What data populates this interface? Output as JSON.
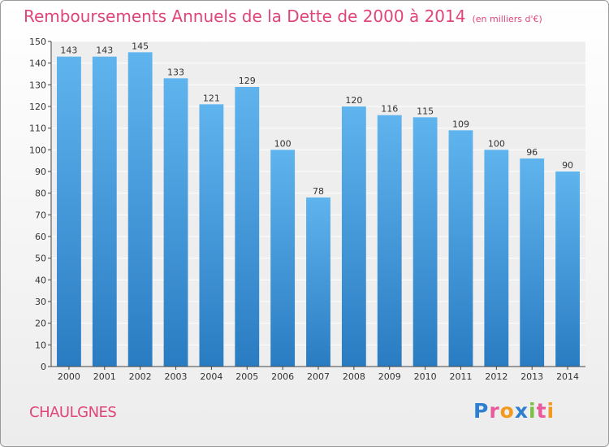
{
  "header": {
    "title": "Remboursements Annuels de la Dette de 2000 à 2014",
    "unit": "(en milliers d'€)"
  },
  "footer": {
    "town": "CHAULGNES",
    "logo_text": "Proxiti"
  },
  "colors": {
    "title": "#e0457a",
    "bar_top": "#5fb4ee",
    "bar_bottom": "#2a7cc2",
    "plot_bg": "#eeeeee",
    "grid": "#ffffff",
    "axis": "#444444"
  },
  "chart_data": {
    "type": "bar",
    "title": "Remboursements Annuels de la Dette de 2000 à 2014",
    "xlabel": "",
    "ylabel": "",
    "categories": [
      "2000",
      "2001",
      "2002",
      "2003",
      "2004",
      "2005",
      "2006",
      "2007",
      "2008",
      "2009",
      "2010",
      "2011",
      "2012",
      "2013",
      "2014"
    ],
    "values": [
      143,
      143,
      145,
      133,
      121,
      129,
      100,
      78,
      120,
      116,
      115,
      109,
      100,
      96,
      90
    ],
    "ylim": [
      0,
      150
    ],
    "yticks": [
      0,
      10,
      20,
      30,
      40,
      50,
      60,
      70,
      80,
      90,
      100,
      110,
      120,
      130,
      140,
      150
    ],
    "grid": true
  }
}
